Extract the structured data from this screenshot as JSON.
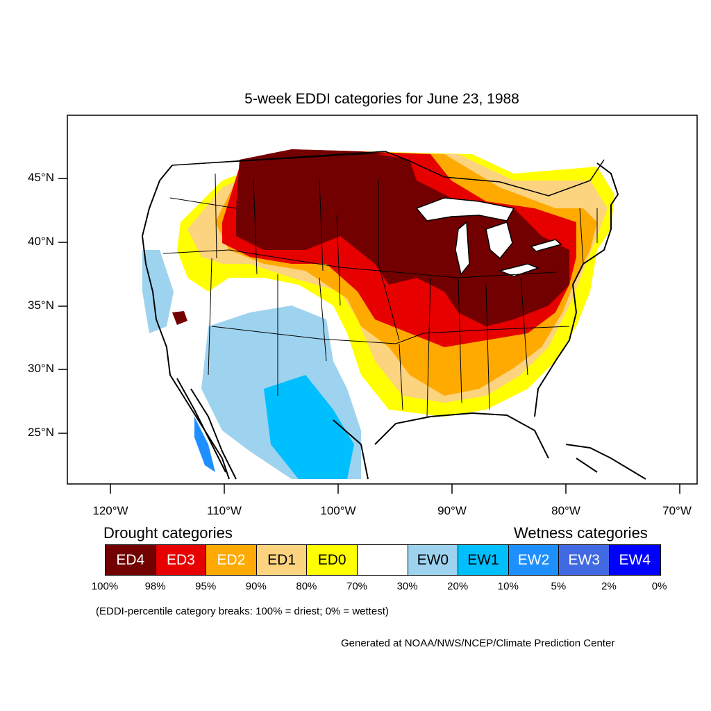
{
  "title": "5-week EDDI categories for June 23, 1988",
  "latitude_labels": [
    "45°N",
    "40°N",
    "35°N",
    "30°N",
    "25°N"
  ],
  "longitude_labels": [
    "120°W",
    "110°W",
    "100°W",
    "90°W",
    "80°W",
    "70°W"
  ],
  "legend": {
    "drought_heading": "Drought categories",
    "wetness_heading": "Wetness categories",
    "categories": [
      {
        "label": "ED4",
        "color": "#730000",
        "text_color": "#ffffff"
      },
      {
        "label": "ED3",
        "color": "#e60000",
        "text_color": "#ffffff"
      },
      {
        "label": "ED2",
        "color": "#ffaa00",
        "text_color": "#ffffff"
      },
      {
        "label": "ED1",
        "color": "#fcd37f",
        "text_color": "#000000"
      },
      {
        "label": "ED0",
        "color": "#ffff00",
        "text_color": "#000000"
      },
      {
        "label": "",
        "color": "#ffffff",
        "text_color": "#000000"
      },
      {
        "label": "EW0",
        "color": "#9dd3ef",
        "text_color": "#000000"
      },
      {
        "label": "EW1",
        "color": "#00bfff",
        "text_color": "#000000"
      },
      {
        "label": "EW2",
        "color": "#1e8fff",
        "text_color": "#ffffff"
      },
      {
        "label": "EW3",
        "color": "#4169e1",
        "text_color": "#ffffff"
      },
      {
        "label": "EW4",
        "color": "#0000ff",
        "text_color": "#ffffff"
      }
    ],
    "percentiles": [
      "100%",
      "98%",
      "95%",
      "90%",
      "80%",
      "70%",
      "30%",
      "20%",
      "10%",
      "5%",
      "2%",
      "0%"
    ]
  },
  "note": "(EDDI-percentile category breaks: 100% = driest; 0% = wettest)",
  "credit": "Generated at NOAA/NWS/NCEP/Climate Prediction Center"
}
